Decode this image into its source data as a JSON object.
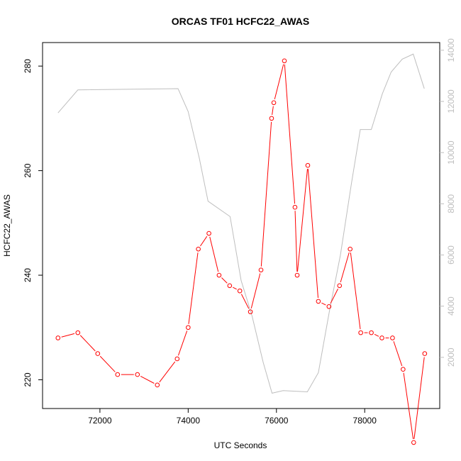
{
  "chart_data": {
    "type": "line",
    "title": "ORCAS TF01 HCFC22_AWAS",
    "xlabel": "UTC Seconds",
    "ylabel": "HCFC22_AWAS",
    "xlim": [
      70700,
      79700
    ],
    "ylim": [
      214.5,
      284.5
    ],
    "y2lim": [
      0,
      14300
    ],
    "x_ticks": [
      72000,
      74000,
      76000,
      78000
    ],
    "x_tick_labels": [
      "72000",
      "74000",
      "76000",
      "78000"
    ],
    "y_ticks": [
      220,
      240,
      260,
      280
    ],
    "y_tick_labels": [
      "220",
      "240",
      "260",
      "280"
    ],
    "y2_ticks": [
      2000,
      4000,
      6000,
      8000,
      10000,
      12000,
      14000
    ],
    "y2_tick_labels": [
      "2000",
      "4000",
      "6000",
      "8000",
      "10000",
      "12000",
      "14000"
    ],
    "grid": false,
    "series": [
      {
        "axis": "left",
        "color": "#ff0000",
        "marker": "open-circle",
        "x": [
          71050,
          71500,
          71950,
          72400,
          72850,
          73300,
          73750,
          74000,
          74230,
          74470,
          74700,
          74940,
          75170,
          75410,
          75650,
          75890,
          75940,
          76180,
          76420,
          76470,
          76710,
          76950,
          77190,
          77430,
          77670,
          77910,
          78150,
          78390,
          78630,
          78870,
          79110,
          79360
        ],
        "values": [
          228,
          229,
          225,
          221,
          221,
          219,
          224,
          230,
          245,
          248,
          240,
          238,
          237,
          233,
          241,
          270,
          273,
          281,
          253,
          240,
          261,
          235,
          234,
          238,
          245,
          229,
          229,
          228,
          228,
          222,
          208,
          225
        ]
      },
      {
        "axis": "right",
        "color": "#bebebe",
        "marker": "none",
        "x": [
          71050,
          71500,
          73770,
          74000,
          74250,
          74450,
          74950,
          75200,
          75450,
          75700,
          75900,
          76150,
          76700,
          76950,
          77200,
          77450,
          77700,
          77900,
          78150,
          78400,
          78600,
          78850,
          79100,
          79350
        ],
        "values": [
          11550,
          12450,
          12500,
          11600,
          9800,
          8100,
          7500,
          5000,
          3600,
          1800,
          600,
          700,
          650,
          1400,
          3800,
          6000,
          8800,
          10900,
          10900,
          12300,
          13150,
          13650,
          13850,
          12500
        ]
      }
    ]
  }
}
